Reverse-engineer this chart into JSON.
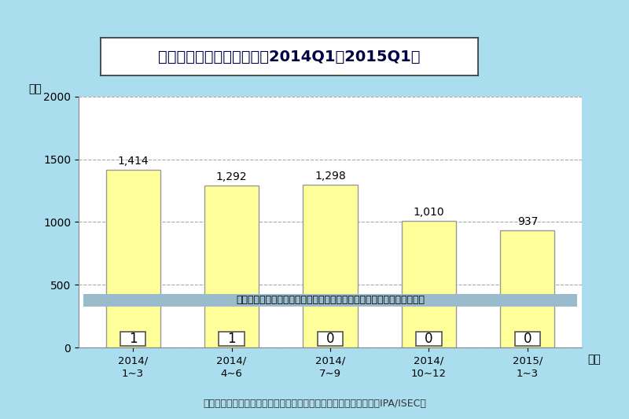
{
  "title": "ウイルス届出件数の推移（2014Q1〜2015Q1）",
  "ylabel": "件数",
  "xlabel": "年月",
  "categories": [
    "2014/\n1∼3",
    "2014/\n4∼6",
    "2014/\n7∼9",
    "2014/\n10∼12",
    "2015/\n1∼3"
  ],
  "values": [
    1414,
    1292,
    1298,
    1010,
    937
  ],
  "pc_values": [
    1,
    1,
    0,
    0,
    0
  ],
  "bar_color": "#FFFF99",
  "bar_edge_color": "#999999",
  "ylim": [
    0,
    2000
  ],
  "yticks": [
    0,
    500,
    1000,
    1500,
    2000
  ],
  "background_color": "#AADDEE",
  "plot_bg_color": "#FFFFFF",
  "grid_color": "#AAAAAA",
  "note_text": "（注：囲みの数字は、全体の件数の内、パソコンに感染があった件数）",
  "note_bg_color": "#99BBCC",
  "note_text_color": "#000000",
  "footer_text": "独立行政法人情報処理推進機構　技術本部セキュリティセンター（IPA/ISEC）",
  "title_box_color": "#FFFFFF",
  "title_box_edge": "#333333",
  "value_label_color": "#000000",
  "pc_box_color": "#FFFFFF",
  "pc_box_edge": "#555555"
}
